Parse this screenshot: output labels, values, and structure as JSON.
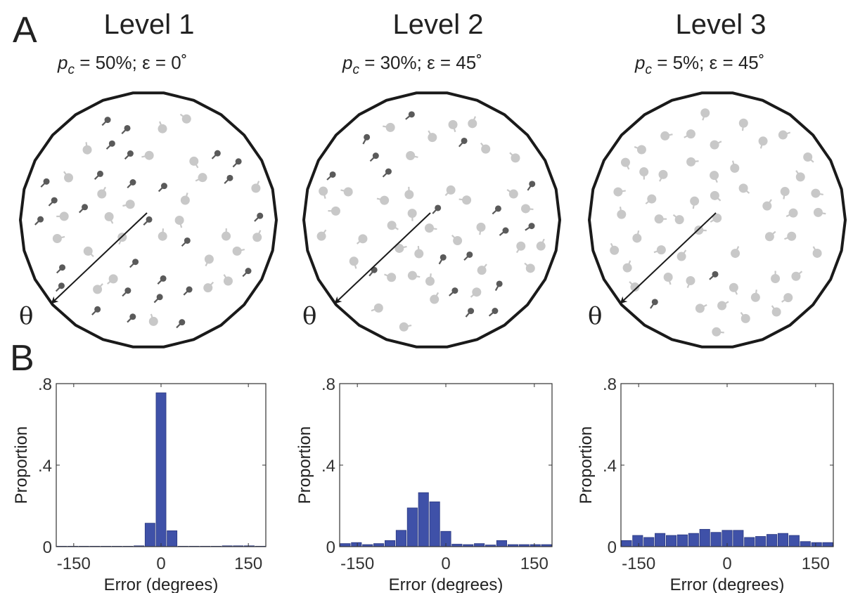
{
  "panel_labels": {
    "a": "A",
    "b": "B"
  },
  "levels": [
    {
      "title": "Level 1",
      "pc_symbol": "p",
      "pc_sub": "c",
      "subtitle_rest": " = 50%; ε = 0˚",
      "theta": "θ"
    },
    {
      "title": "Level 2",
      "pc_symbol": "p",
      "pc_sub": "c",
      "subtitle_rest": " = 30%; ε = 45˚",
      "theta": "θ"
    },
    {
      "title": "Level 3",
      "pc_symbol": "p",
      "pc_sub": "c",
      "subtitle_rest": " = 5%; ε = 45˚",
      "theta": "θ"
    }
  ],
  "colors": {
    "bar": "#3f51a8",
    "dark_dot": "#5a5a5a",
    "light_dot": "#c8c8c8",
    "outline": "#1a1a1a"
  },
  "chart_data": [
    {
      "type": "bar",
      "xlabel": "Error (degrees)",
      "ylabel": "Proportion",
      "xlim": [
        -180,
        180
      ],
      "ylim": [
        0,
        0.8
      ],
      "xticks": [
        -150,
        0,
        150
      ],
      "xtick_labels": [
        "-150",
        "0",
        "150"
      ],
      "yticks": [
        0,
        0.4,
        0.8
      ],
      "ytick_labels": [
        "0",
        ".4",
        ".8"
      ],
      "bin_width": 18.95,
      "bin_centers": [
        -170.5,
        -151.6,
        -132.6,
        -113.7,
        -94.7,
        -75.8,
        -56.8,
        -37.9,
        -18.9,
        0,
        18.9,
        37.9,
        56.8,
        75.8,
        94.7,
        113.7,
        132.6,
        151.6,
        170.5
      ],
      "values": [
        0.002,
        0.002,
        0.002,
        0.002,
        0.002,
        0.002,
        0.002,
        0.004,
        0.115,
        0.755,
        0.078,
        0.002,
        0.002,
        0.002,
        0.002,
        0.004,
        0.004,
        0.004,
        0.002
      ]
    },
    {
      "type": "bar",
      "xlabel": "Error (degrees)",
      "ylabel": "Proportion",
      "xlim": [
        -180,
        180
      ],
      "ylim": [
        0,
        0.8
      ],
      "xticks": [
        -150,
        0,
        150
      ],
      "xtick_labels": [
        "-150",
        "0",
        "150"
      ],
      "yticks": [
        0,
        0.4,
        0.8
      ],
      "ytick_labels": [
        "0",
        ".4",
        ".8"
      ],
      "bin_width": 18.95,
      "bin_centers": [
        -170.5,
        -151.6,
        -132.6,
        -113.7,
        -94.7,
        -75.8,
        -56.8,
        -37.9,
        -18.9,
        0,
        18.9,
        37.9,
        56.8,
        75.8,
        94.7,
        113.7,
        132.6,
        151.6,
        170.5
      ],
      "values": [
        0.015,
        0.02,
        0.01,
        0.015,
        0.03,
        0.08,
        0.19,
        0.265,
        0.22,
        0.075,
        0.012,
        0.01,
        0.015,
        0.008,
        0.03,
        0.01,
        0.01,
        0.01,
        0.01
      ]
    },
    {
      "type": "bar",
      "xlabel": "Error (degrees)",
      "ylabel": "Proportion",
      "xlim": [
        -180,
        180
      ],
      "ylim": [
        0,
        0.8
      ],
      "xticks": [
        -150,
        0,
        150
      ],
      "xtick_labels": [
        "-150",
        "0",
        "150"
      ],
      "yticks": [
        0,
        0.4,
        0.8
      ],
      "ytick_labels": [
        "0",
        ".4",
        ".8"
      ],
      "bin_width": 18.95,
      "bin_centers": [
        -170.5,
        -151.6,
        -132.6,
        -113.7,
        -94.7,
        -75.8,
        -56.8,
        -37.9,
        -18.9,
        0,
        18.9,
        37.9,
        56.8,
        75.8,
        94.7,
        113.7,
        132.6,
        151.6,
        170.5
      ],
      "values": [
        0.03,
        0.055,
        0.045,
        0.065,
        0.055,
        0.058,
        0.065,
        0.085,
        0.07,
        0.08,
        0.08,
        0.045,
        0.05,
        0.06,
        0.065,
        0.055,
        0.025,
        0.02,
        0.02
      ]
    }
  ]
}
